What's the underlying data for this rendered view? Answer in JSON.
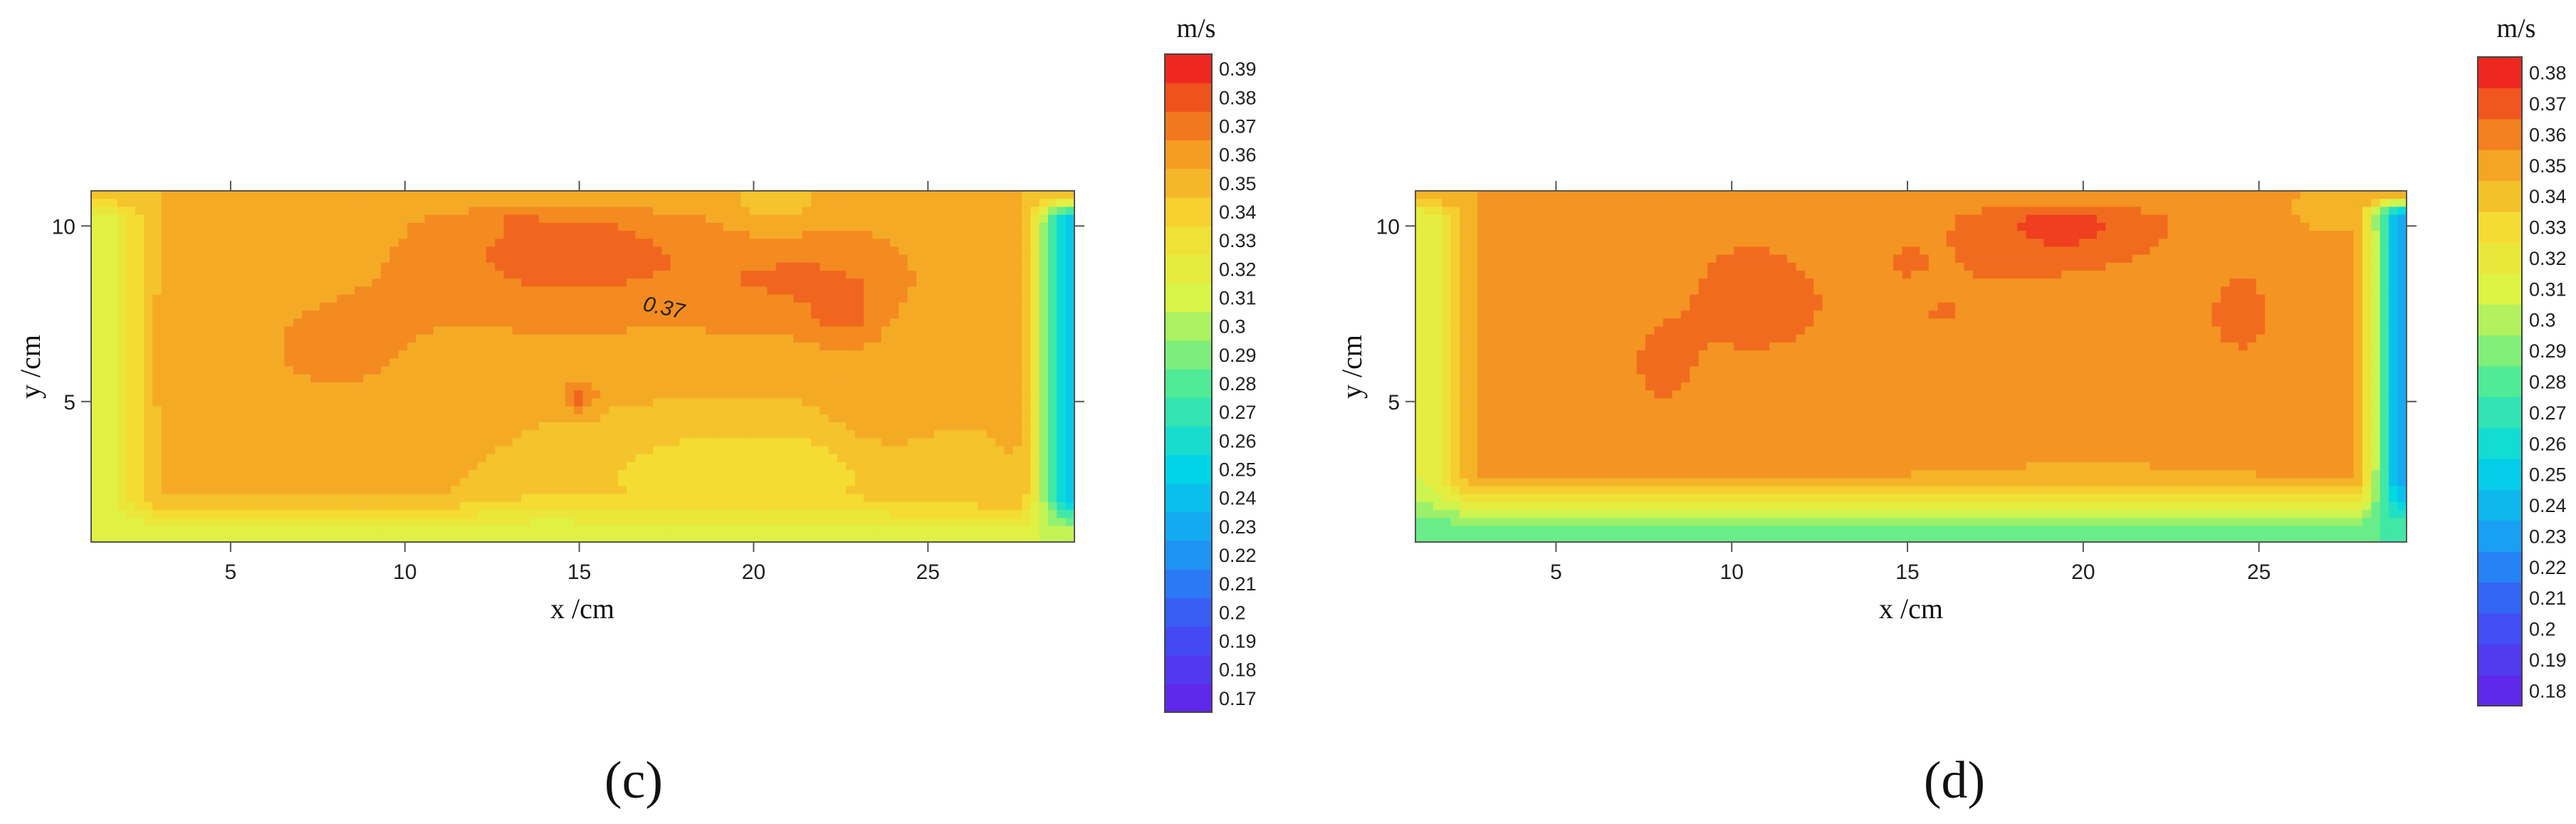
{
  "figure": {
    "panel_c_label": "(c)",
    "panel_d_label": "(d)"
  },
  "chart_data": [
    {
      "type": "heatmap",
      "panel": "(c)",
      "xlabel": "x /cm",
      "ylabel": "y /cm",
      "xlim": [
        1,
        29.2
      ],
      "ylim": [
        1,
        11
      ],
      "xticks": [
        5,
        10,
        15,
        20,
        25
      ],
      "yticks": [
        5,
        10
      ],
      "colorbar": {
        "unit": "m/s",
        "levels": [
          0.17,
          0.18,
          0.19,
          0.2,
          0.21,
          0.22,
          0.23,
          0.24,
          0.25,
          0.26,
          0.27,
          0.28,
          0.29,
          0.3,
          0.31,
          0.32,
          0.33,
          0.34,
          0.35,
          0.36,
          0.37,
          0.38,
          0.39
        ],
        "labels": [
          "0.17",
          "0.18",
          "0.19",
          "0.2",
          "0.21",
          "0.22",
          "0.23",
          "0.24",
          "0.25",
          "0.26",
          "0.27",
          "0.28",
          "0.29",
          "0.3",
          "0.31",
          "0.32",
          "0.33",
          "0.34",
          "0.35",
          "0.36",
          "0.37",
          "0.38",
          "0.39"
        ]
      },
      "contour_labels": [
        {
          "text": "0.37",
          "x": 16.8,
          "y": 7.6
        }
      ],
      "field": {
        "base": 0.352,
        "wall_left": {
          "at": 1.0,
          "width": 2.2,
          "min": 0.31
        },
        "wall_right": {
          "at": 29.2,
          "width": 1.7,
          "min": 0.24
        },
        "wall_bottom": {
          "at": 1.0,
          "width": 1.5,
          "min": 0.31
        },
        "wall_top": {
          "at": 11.0,
          "width": 0.9,
          "min": 0.35
        },
        "bumps": [
          {
            "x": 14.5,
            "y": 9.2,
            "sx": 4.5,
            "sy": 2.2,
            "a": 0.022
          },
          {
            "x": 21.5,
            "y": 8.5,
            "sx": 3.5,
            "sy": 1.8,
            "a": 0.017
          },
          {
            "x": 8.0,
            "y": 6.5,
            "sx": 3.0,
            "sy": 2.0,
            "a": 0.01
          },
          {
            "x": 13.0,
            "y": 10.7,
            "sx": 0.8,
            "sy": 0.5,
            "a": 0.01
          },
          {
            "x": 22.6,
            "y": 7.5,
            "sx": 0.9,
            "sy": 0.9,
            "a": 0.012
          },
          {
            "x": 15.0,
            "y": 5.1,
            "sx": 0.5,
            "sy": 0.4,
            "a": 0.022
          },
          {
            "x": 20.5,
            "y": 10.5,
            "sx": 1.5,
            "sy": 1.0,
            "a": -0.012
          },
          {
            "x": 20.0,
            "y": 3.0,
            "sx": 5.0,
            "sy": 1.5,
            "a": -0.02
          },
          {
            "x": 14.0,
            "y": 1.8,
            "sx": 2.0,
            "sy": 1.0,
            "a": -0.01
          },
          {
            "x": 23.5,
            "y": 4.5,
            "sx": 1.5,
            "sy": 1.5,
            "a": 0.008
          }
        ]
      }
    },
    {
      "type": "heatmap",
      "panel": "(d)",
      "xlabel": "x /cm",
      "ylabel": "y /cm",
      "xlim": [
        1,
        29.2
      ],
      "ylim": [
        1,
        11
      ],
      "xticks": [
        5,
        10,
        15,
        20,
        25
      ],
      "yticks": [
        5,
        10
      ],
      "colorbar": {
        "unit": "m/s",
        "levels": [
          0.18,
          0.19,
          0.2,
          0.21,
          0.22,
          0.23,
          0.24,
          0.25,
          0.26,
          0.27,
          0.28,
          0.29,
          0.3,
          0.31,
          0.32,
          0.33,
          0.34,
          0.35,
          0.36,
          0.37,
          0.38
        ],
        "labels": [
          "0.18",
          "0.19",
          "0.2",
          "0.21",
          "0.22",
          "0.23",
          "0.24",
          "0.25",
          "0.26",
          "0.27",
          "0.28",
          "0.29",
          "0.3",
          "0.31",
          "0.32",
          "0.33",
          "0.34",
          "0.35",
          "0.36",
          "0.37",
          "0.38"
        ]
      },
      "contour_labels": [],
      "field": {
        "base": 0.352,
        "wall_left": {
          "at": 1.0,
          "width": 2.0,
          "min": 0.31
        },
        "wall_right": {
          "at": 29.2,
          "width": 1.6,
          "min": 0.23
        },
        "wall_bottom": {
          "at": 1.0,
          "width": 2.0,
          "min": 0.28
        },
        "wall_top": {
          "at": 11.0,
          "width": 0.8,
          "min": 0.35
        },
        "bumps": [
          {
            "x": 19.5,
            "y": 10.0,
            "sx": 3.0,
            "sy": 1.2,
            "a": 0.02
          },
          {
            "x": 10.5,
            "y": 8.0,
            "sx": 2.0,
            "sy": 2.0,
            "a": 0.012
          },
          {
            "x": 8.0,
            "y": 6.0,
            "sx": 1.2,
            "sy": 1.6,
            "a": 0.01
          },
          {
            "x": 16.0,
            "y": 7.5,
            "sx": 4.0,
            "sy": 2.0,
            "a": 0.008
          },
          {
            "x": 24.5,
            "y": 7.5,
            "sx": 1.5,
            "sy": 2.0,
            "a": 0.01
          },
          {
            "x": 15.0,
            "y": 9.0,
            "sx": 0.4,
            "sy": 0.3,
            "a": 0.01
          },
          {
            "x": 27.0,
            "y": 10.5,
            "sx": 1.0,
            "sy": 0.6,
            "a": -0.008
          },
          {
            "x": 20.0,
            "y": 1.5,
            "sx": 6.0,
            "sy": 1.2,
            "a": -0.015
          }
        ]
      }
    }
  ]
}
